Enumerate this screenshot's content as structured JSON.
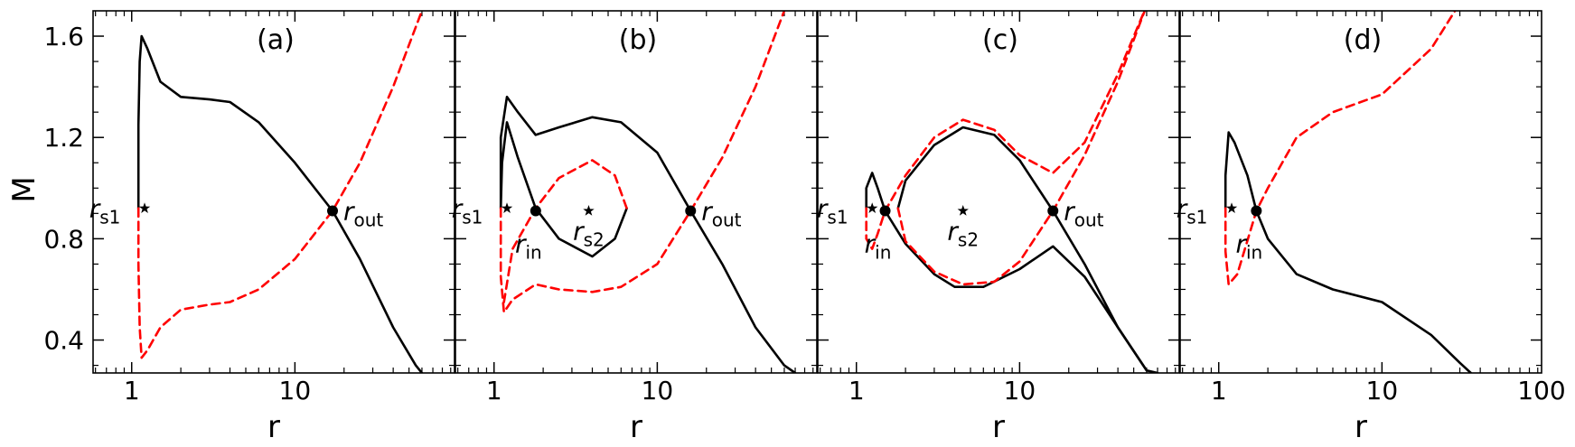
{
  "chart_data": {
    "type": "line",
    "shared": {
      "ylabel": "M",
      "xlabel": "r",
      "xscale": "log",
      "xlim": [
        0.58,
        95
      ],
      "ylim": [
        0.27,
        1.7
      ],
      "yticks": [
        0.4,
        0.8,
        1.2,
        1.6
      ],
      "ytick_labels": [
        "0.4",
        "0.8",
        "1.2",
        "1.6"
      ],
      "xticks": [
        1,
        10,
        100
      ],
      "xtick_labels_per_panel": [
        [
          "1",
          "10"
        ],
        [
          "1",
          "10"
        ],
        [
          "1",
          "10"
        ],
        [
          "1",
          "10",
          "100"
        ]
      ],
      "colors": {
        "transonic": "#000000",
        "dashed": "#ff0000"
      }
    },
    "panels": [
      {
        "label": "(a)",
        "series": [
          {
            "style": "solid",
            "color": "#000000",
            "points": [
              [
                1.1,
                0.92
              ],
              [
                1.1,
                1.25
              ],
              [
                1.12,
                1.5
              ],
              [
                1.15,
                1.6
              ],
              [
                1.25,
                1.55
              ],
              [
                1.5,
                1.42
              ],
              [
                2,
                1.36
              ],
              [
                3,
                1.35
              ],
              [
                4,
                1.34
              ],
              [
                6,
                1.26
              ],
              [
                10,
                1.1
              ],
              [
                17,
                0.91
              ],
              [
                25,
                0.72
              ],
              [
                40,
                0.45
              ],
              [
                55,
                0.3
              ],
              [
                60,
                0.27
              ]
            ]
          },
          {
            "style": "dashed",
            "color": "#ff0000",
            "points": [
              [
                1.1,
                0.92
              ],
              [
                1.1,
                0.7
              ],
              [
                1.12,
                0.45
              ],
              [
                1.15,
                0.33
              ],
              [
                1.25,
                0.36
              ],
              [
                1.5,
                0.45
              ],
              [
                2,
                0.52
              ],
              [
                3,
                0.54
              ],
              [
                4,
                0.55
              ],
              [
                6,
                0.6
              ],
              [
                10,
                0.72
              ],
              [
                17,
                0.91
              ],
              [
                25,
                1.1
              ],
              [
                40,
                1.4
              ],
              [
                60,
                1.7
              ]
            ]
          }
        ],
        "points": [
          {
            "name": "r_s1",
            "x": 1.2,
            "y": 0.92,
            "marker": "star"
          },
          {
            "name": "r_out",
            "x": 17,
            "y": 0.91,
            "marker": "dot"
          }
        ],
        "annotations": [
          {
            "base": "r",
            "sub": "s1"
          },
          {
            "base": "r",
            "sub": "out"
          }
        ]
      },
      {
        "label": "(b)",
        "series": [
          {
            "style": "solid",
            "color": "#000000",
            "points": [
              [
                1.1,
                0.92
              ],
              [
                1.1,
                1.2
              ],
              [
                1.2,
                1.36
              ],
              [
                1.4,
                1.3
              ],
              [
                1.8,
                1.21
              ],
              [
                2.5,
                1.24
              ],
              [
                4,
                1.28
              ],
              [
                6,
                1.26
              ],
              [
                10,
                1.14
              ],
              [
                16,
                0.91
              ],
              [
                25,
                0.7
              ],
              [
                40,
                0.45
              ],
              [
                60,
                0.3
              ],
              [
                70,
                0.27
              ]
            ]
          },
          {
            "style": "solid",
            "color": "#000000",
            "points": [
              [
                1.1,
                0.92
              ],
              [
                1.12,
                1.1
              ],
              [
                1.2,
                1.26
              ],
              [
                1.4,
                1.12
              ],
              [
                1.8,
                0.92
              ],
              [
                2.5,
                0.8
              ],
              [
                4,
                0.73
              ],
              [
                5.5,
                0.8
              ],
              [
                6.5,
                0.92
              ]
            ]
          },
          {
            "style": "dashed",
            "color": "#ff0000",
            "points": [
              [
                1.1,
                0.92
              ],
              [
                1.1,
                0.65
              ],
              [
                1.15,
                0.51
              ],
              [
                1.3,
                0.56
              ],
              [
                1.8,
                0.62
              ],
              [
                2.5,
                0.6
              ],
              [
                4,
                0.59
              ],
              [
                6,
                0.61
              ],
              [
                10,
                0.7
              ],
              [
                16,
                0.91
              ],
              [
                25,
                1.12
              ],
              [
                40,
                1.4
              ],
              [
                60,
                1.7
              ]
            ]
          },
          {
            "style": "dashed",
            "color": "#ff0000",
            "points": [
              [
                1.15,
                0.55
              ],
              [
                1.3,
                0.76
              ],
              [
                1.8,
                0.92
              ],
              [
                2.5,
                1.04
              ],
              [
                4,
                1.11
              ],
              [
                5.5,
                1.05
              ],
              [
                6.5,
                0.92
              ]
            ]
          }
        ],
        "points": [
          {
            "name": "r_s1",
            "x": 1.2,
            "y": 0.92,
            "marker": "star"
          },
          {
            "name": "r_in",
            "x": 1.8,
            "y": 0.91,
            "marker": "dot"
          },
          {
            "name": "r_s2",
            "x": 3.8,
            "y": 0.91,
            "marker": "star"
          },
          {
            "name": "r_out",
            "x": 16,
            "y": 0.91,
            "marker": "dot"
          }
        ],
        "annotations": [
          {
            "base": "r",
            "sub": "s1"
          },
          {
            "base": "r",
            "sub": "in"
          },
          {
            "base": "r",
            "sub": "s2"
          },
          {
            "base": "r",
            "sub": "out"
          }
        ]
      },
      {
        "label": "(c)",
        "series": [
          {
            "style": "solid",
            "color": "#000000",
            "points": [
              [
                1.15,
                0.92
              ],
              [
                1.15,
                1.0
              ],
              [
                1.25,
                1.06
              ],
              [
                1.35,
                1.0
              ],
              [
                1.5,
                0.91
              ],
              [
                2,
                0.78
              ],
              [
                3,
                0.66
              ],
              [
                4,
                0.61
              ],
              [
                6,
                0.61
              ],
              [
                10,
                0.68
              ],
              [
                16,
                0.77
              ],
              [
                25,
                0.65
              ],
              [
                40,
                0.45
              ],
              [
                60,
                0.28
              ],
              [
                70,
                0.27
              ]
            ]
          },
          {
            "style": "solid",
            "color": "#000000",
            "points": [
              [
                1.8,
                0.92
              ],
              [
                2,
                1.03
              ],
              [
                3,
                1.17
              ],
              [
                4.5,
                1.24
              ],
              [
                7,
                1.21
              ],
              [
                10,
                1.11
              ],
              [
                16,
                0.91
              ],
              [
                25,
                0.7
              ],
              [
                40,
                0.45
              ],
              [
                60,
                0.28
              ]
            ]
          },
          {
            "style": "dashed",
            "color": "#ff0000",
            "points": [
              [
                1.15,
                0.92
              ],
              [
                1.15,
                0.8
              ],
              [
                1.25,
                0.76
              ],
              [
                1.35,
                0.82
              ],
              [
                1.5,
                0.91
              ],
              [
                2,
                1.05
              ],
              [
                3,
                1.2
              ],
              [
                4.5,
                1.27
              ],
              [
                7,
                1.23
              ],
              [
                10,
                1.13
              ],
              [
                16,
                1.06
              ],
              [
                25,
                1.18
              ],
              [
                40,
                1.45
              ],
              [
                60,
                1.72
              ]
            ]
          },
          {
            "style": "dashed",
            "color": "#ff0000",
            "points": [
              [
                1.8,
                0.92
              ],
              [
                2,
                0.79
              ],
              [
                3,
                0.67
              ],
              [
                4.5,
                0.62
              ],
              [
                7,
                0.63
              ],
              [
                10,
                0.71
              ],
              [
                16,
                0.91
              ],
              [
                25,
                1.13
              ],
              [
                40,
                1.42
              ],
              [
                60,
                1.72
              ]
            ]
          }
        ],
        "points": [
          {
            "name": "r_s1",
            "x": 1.25,
            "y": 0.92,
            "marker": "star"
          },
          {
            "name": "r_in",
            "x": 1.5,
            "y": 0.91,
            "marker": "dot"
          },
          {
            "name": "r_s2",
            "x": 4.5,
            "y": 0.91,
            "marker": "star"
          },
          {
            "name": "r_out",
            "x": 16,
            "y": 0.91,
            "marker": "dot"
          }
        ],
        "annotations": [
          {
            "base": "r",
            "sub": "s1"
          },
          {
            "base": "r",
            "sub": "in"
          },
          {
            "base": "r",
            "sub": "s2"
          },
          {
            "base": "r",
            "sub": "out"
          }
        ]
      },
      {
        "label": "(d)",
        "series": [
          {
            "style": "solid",
            "color": "#000000",
            "points": [
              [
                1.1,
                0.92
              ],
              [
                1.1,
                1.05
              ],
              [
                1.15,
                1.22
              ],
              [
                1.25,
                1.18
              ],
              [
                1.5,
                1.05
              ],
              [
                1.7,
                0.91
              ],
              [
                2,
                0.8
              ],
              [
                3,
                0.66
              ],
              [
                5,
                0.6
              ],
              [
                10,
                0.55
              ],
              [
                20,
                0.42
              ],
              [
                30,
                0.31
              ],
              [
                35,
                0.27
              ]
            ]
          },
          {
            "style": "dashed",
            "color": "#ff0000",
            "points": [
              [
                1.1,
                0.92
              ],
              [
                1.1,
                0.75
              ],
              [
                1.15,
                0.62
              ],
              [
                1.3,
                0.66
              ],
              [
                1.7,
                0.91
              ],
              [
                2,
                1.0
              ],
              [
                3,
                1.2
              ],
              [
                5,
                1.3
              ],
              [
                10,
                1.37
              ],
              [
                20,
                1.55
              ],
              [
                28,
                1.7
              ]
            ]
          }
        ],
        "points": [
          {
            "name": "r_s1",
            "x": 1.2,
            "y": 0.92,
            "marker": "star"
          },
          {
            "name": "r_in",
            "x": 1.7,
            "y": 0.91,
            "marker": "dot"
          }
        ],
        "annotations": [
          {
            "base": "r",
            "sub": "s1"
          },
          {
            "base": "r",
            "sub": "in"
          }
        ]
      }
    ]
  }
}
